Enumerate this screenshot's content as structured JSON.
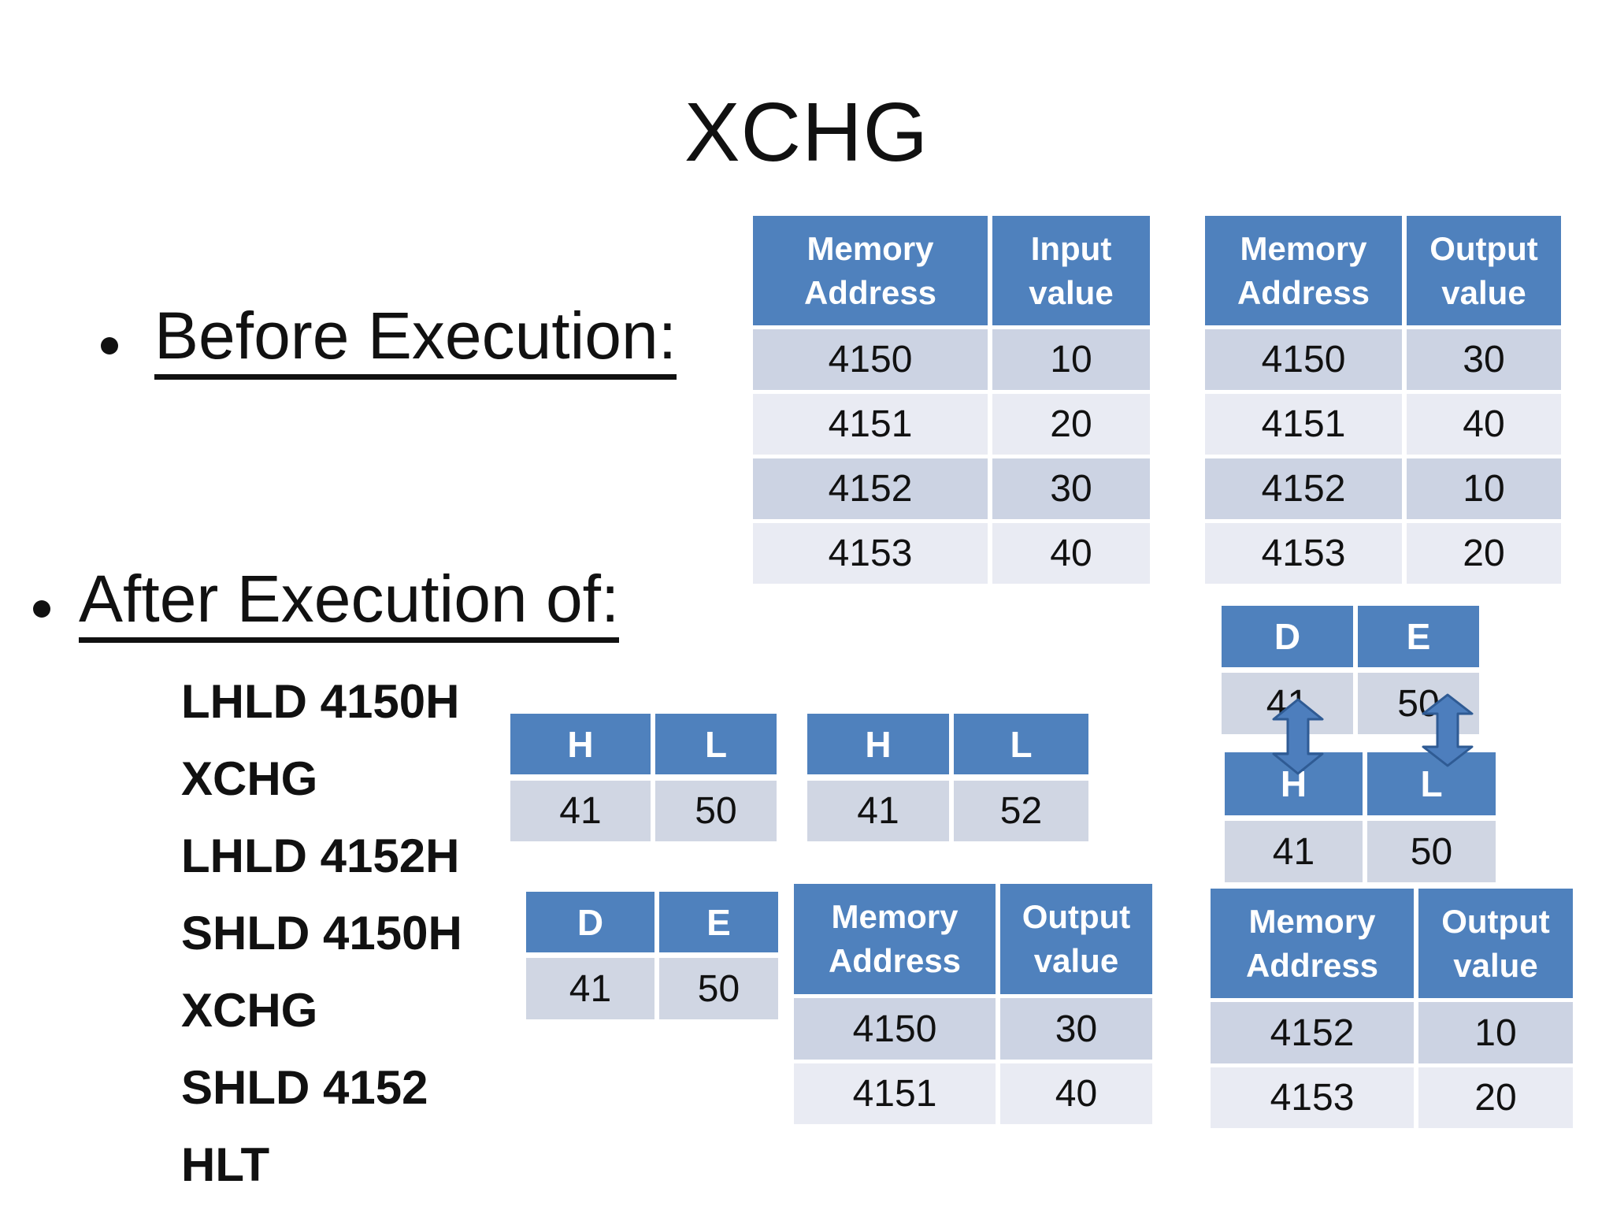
{
  "slide": {
    "title": "XCHG",
    "bullets": [
      {
        "label": "Before Execution:"
      },
      {
        "label": "After Execution of:"
      }
    ],
    "code_lines": [
      "LHLD 4150H",
      "XCHG",
      "LHLD 4152H",
      "SHLD 4150H",
      "XCHG",
      "SHLD 4152",
      "HLT"
    ]
  },
  "colors": {
    "accent": "#4f81bd",
    "band_dark": "#ccd3e3",
    "band_light": "#e9ebf3",
    "band_single": "#d0d6e3",
    "arrow_fill": "#4d7ebd",
    "arrow_stroke": "#2f5b94"
  },
  "tables": {
    "before_input": {
      "headers": [
        "Memory Address",
        "Input value"
      ],
      "rows": [
        [
          "4150",
          "10"
        ],
        [
          "4151",
          "20"
        ],
        [
          "4152",
          "30"
        ],
        [
          "4153",
          "40"
        ]
      ]
    },
    "before_output": {
      "headers": [
        "Memory Address",
        "Output value"
      ],
      "rows": [
        [
          "4150",
          "30"
        ],
        [
          "4151",
          "40"
        ],
        [
          "4152",
          "10"
        ],
        [
          "4153",
          "20"
        ]
      ]
    },
    "hl_after_lhld4150": {
      "headers": [
        "H",
        "L"
      ],
      "rows": [
        [
          "41",
          "50"
        ]
      ]
    },
    "hl_after_lhld4152": {
      "headers": [
        "H",
        "L"
      ],
      "rows": [
        [
          "41",
          "52"
        ]
      ]
    },
    "de_after_xchg": {
      "headers": [
        "D",
        "E"
      ],
      "rows": [
        [
          "41",
          "50"
        ]
      ]
    },
    "mem_after_shld4150": {
      "headers": [
        "Memory Address",
        "Output value"
      ],
      "rows": [
        [
          "4150",
          "30"
        ],
        [
          "4151",
          "40"
        ]
      ]
    },
    "de_right": {
      "headers": [
        "D",
        "E"
      ],
      "rows": [
        [
          "41",
          "50"
        ]
      ]
    },
    "hl_right": {
      "headers": [
        "H",
        "L"
      ],
      "rows": [
        [
          "41",
          "50"
        ]
      ]
    },
    "mem_after_shld4152": {
      "headers": [
        "Memory Address",
        "Output value"
      ],
      "rows": [
        [
          "4152",
          "10"
        ],
        [
          "4153",
          "20"
        ]
      ]
    }
  }
}
